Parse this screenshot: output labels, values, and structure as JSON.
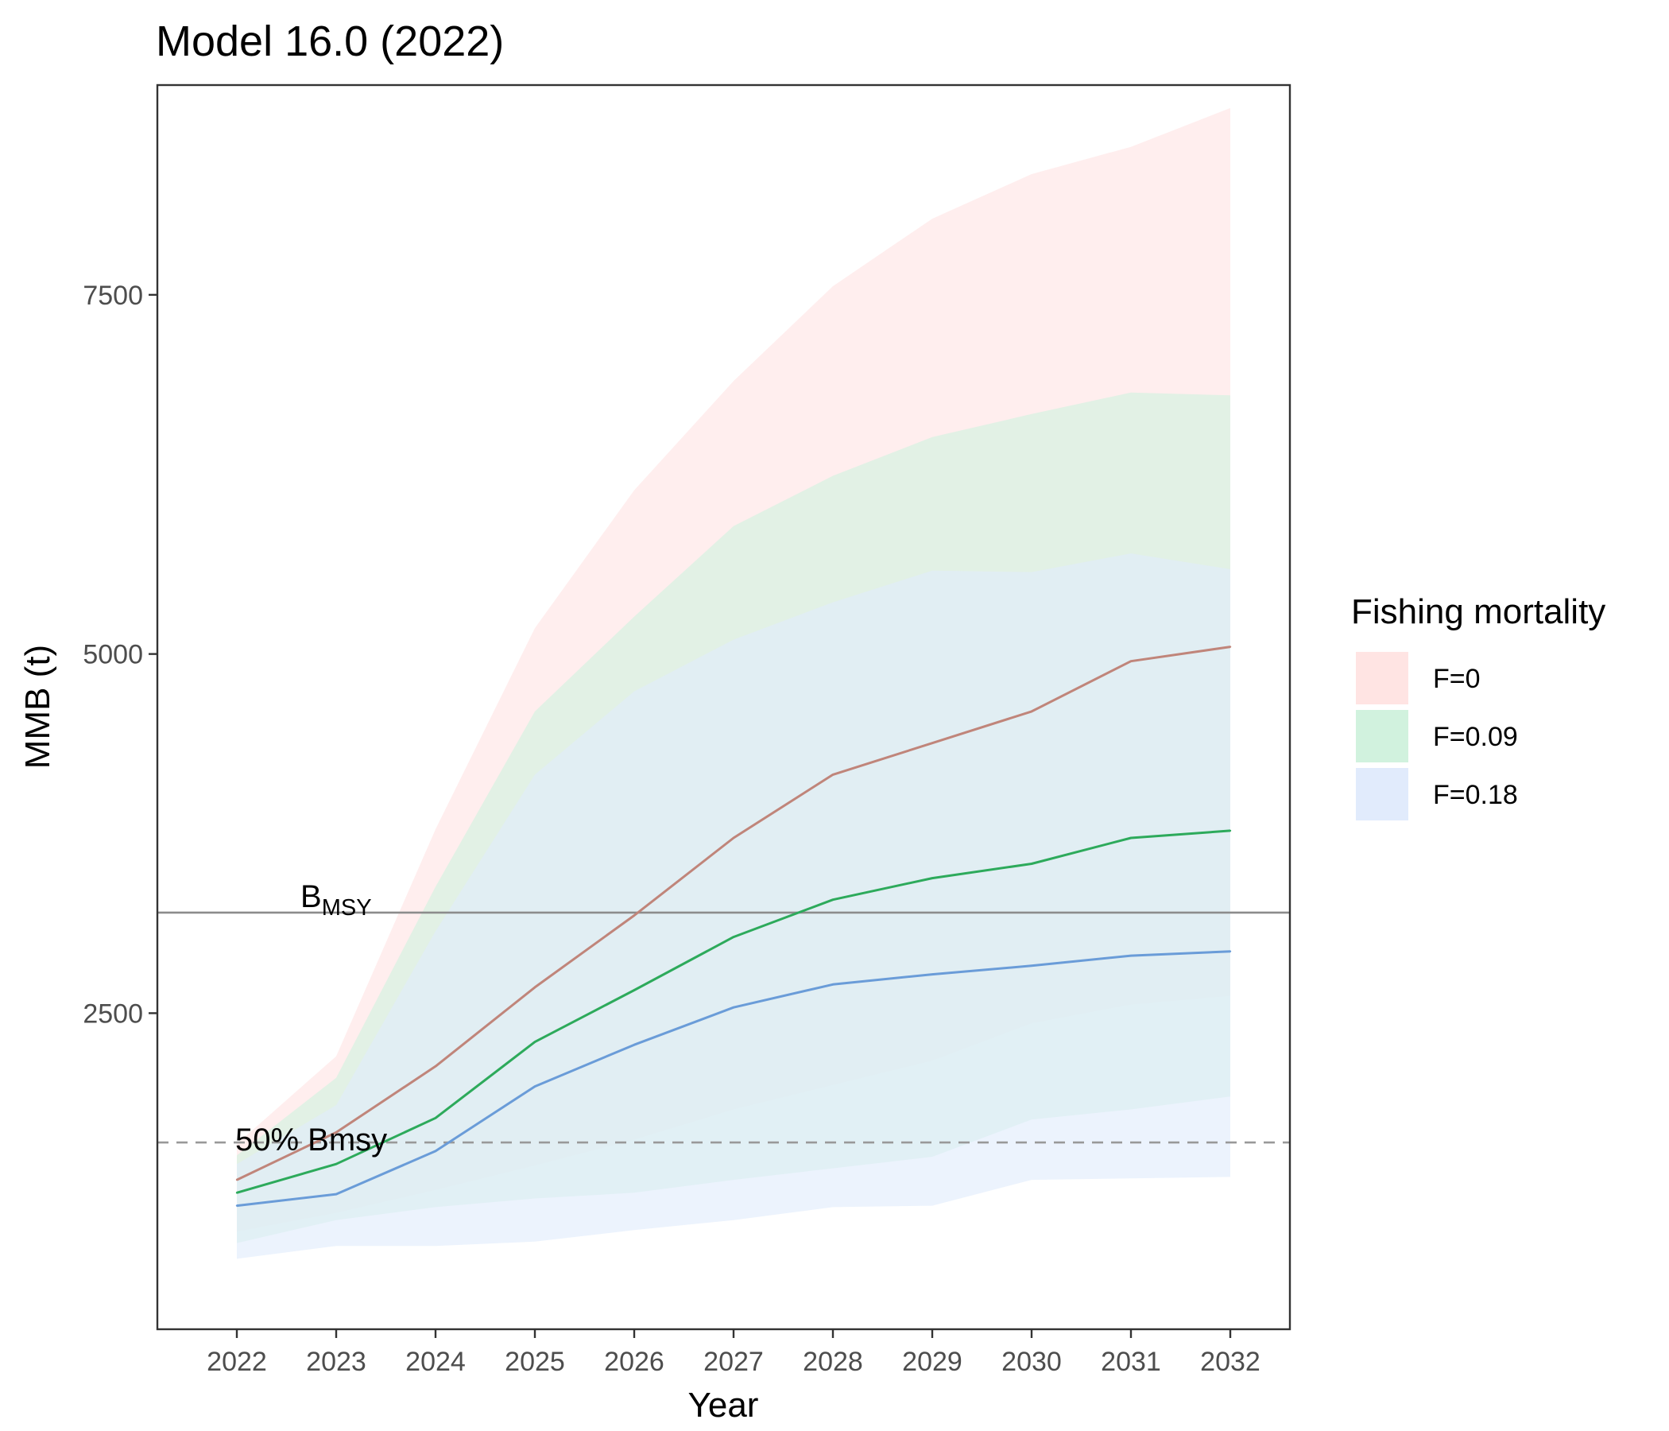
{
  "chart_data": {
    "type": "line",
    "title": "Model 16.0 (2022)",
    "xlabel": "Year",
    "ylabel": "MMB (t)",
    "x": [
      2022,
      2023,
      2024,
      2025,
      2026,
      2027,
      2028,
      2029,
      2030,
      2031,
      2032
    ],
    "xlim": [
      2021.2,
      2032.6
    ],
    "ylim": [
      300,
      8960
    ],
    "yticks": [
      2500,
      5000,
      7500
    ],
    "grid": false,
    "legend": {
      "title": "Fishing mortality",
      "position": "right"
    },
    "series": [
      {
        "name": "F=0",
        "line_color": "#C0857A",
        "fill_color": "#FFE4E3",
        "values": [
          1340,
          1670,
          2130,
          2680,
          3180,
          3720,
          4160,
          4380,
          4600,
          4950,
          5050
        ],
        "upper": [
          1590,
          2200,
          3780,
          5180,
          6140,
          6900,
          7560,
          8030,
          8340,
          8530,
          8800
        ],
        "lower": [
          980,
          1110,
          1270,
          1440,
          1620,
          1830,
          2000,
          2170,
          2430,
          2560,
          2620
        ]
      },
      {
        "name": "F=0.09",
        "line_color": "#2DAA5B",
        "fill_color": "#D1F2DE",
        "values": [
          1250,
          1450,
          1770,
          2300,
          2660,
          3030,
          3290,
          3440,
          3540,
          3720,
          3770
        ],
        "upper": [
          1510,
          2050,
          3380,
          4600,
          5260,
          5890,
          6240,
          6510,
          6670,
          6820,
          6800
        ],
        "lower": [
          900,
          1060,
          1150,
          1210,
          1250,
          1340,
          1420,
          1500,
          1760,
          1830,
          1920
        ]
      },
      {
        "name": "F=0.18",
        "line_color": "#6A9CD8",
        "fill_color": "#E1EBFC",
        "values": [
          1160,
          1240,
          1540,
          1990,
          2280,
          2540,
          2700,
          2770,
          2830,
          2900,
          2930
        ],
        "upper": [
          1450,
          1860,
          3070,
          4160,
          4740,
          5100,
          5360,
          5580,
          5570,
          5700,
          5590
        ],
        "lower": [
          790,
          880,
          880,
          910,
          990,
          1060,
          1150,
          1160,
          1340,
          1350,
          1360
        ]
      }
    ],
    "reference_lines": [
      {
        "label": "B",
        "label_sub": "MSY",
        "value": 3200,
        "style": "solid",
        "color": "#8c8c8c"
      },
      {
        "label": "50% Bmsy",
        "value": 1600,
        "style": "dashed",
        "color": "#999999"
      }
    ]
  }
}
